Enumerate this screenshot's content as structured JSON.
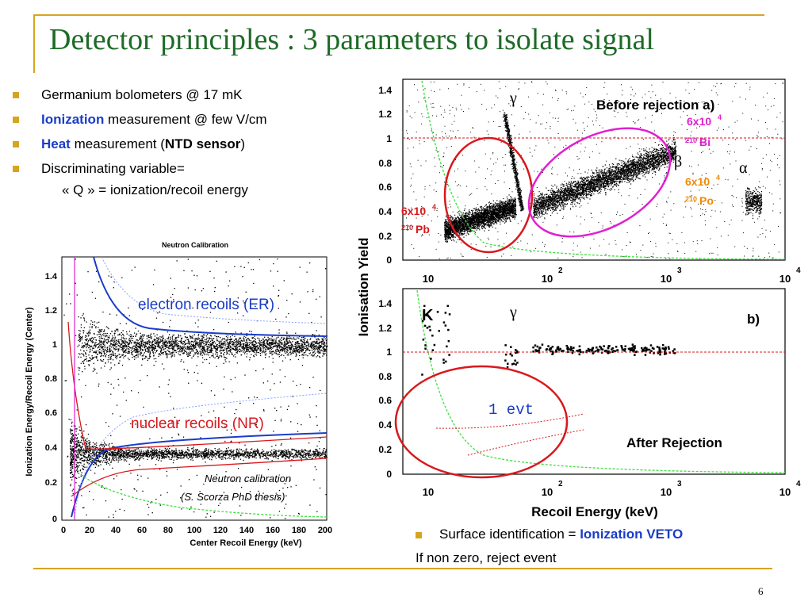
{
  "title": "Detector principles  : 3 parameters to isolate signal",
  "bullets": {
    "b1": "Germanium bolometers @ 17 mK",
    "b2_strong": "Ionization",
    "b2_rest": " measurement @ few V/cm",
    "b3_strong": "Heat",
    "b3_mid": " measurement (",
    "b3_bold": "NTD sensor",
    "b3_end": ")",
    "b4": "Discriminating variable=",
    "sub": "« Q » = ionization/recoil energy"
  },
  "left_plot": {
    "title": "Neutron Calibration",
    "ylabel": "Ionization Energy/Recoil Energy (Center)",
    "xlabel": "Center Recoil Energy (keV)",
    "yticks": [
      "1.4",
      "1.2",
      "1",
      "0.8",
      "0.6",
      "0.4",
      "0.2",
      "0"
    ],
    "xticks": [
      "0",
      "20",
      "40",
      "60",
      "80",
      "100",
      "120",
      "140",
      "160",
      "180",
      "200"
    ],
    "er_label": "electron recoils (ER)",
    "nr_label": "nuclear recoils (NR)",
    "caption1": "Neutron calibration",
    "caption2": "(S. Scorza PhD thesis)"
  },
  "right_plot": {
    "ylabel": "Ionisation Yield",
    "xlabel": "Recoil Energy (keV)",
    "yticks": [
      "1.4",
      "1.2",
      "1",
      "0.8",
      "0.6",
      "0.4",
      "0.2",
      "0"
    ],
    "xticks": [
      "10",
      "10",
      "10",
      "10"
    ],
    "xexps": [
      "",
      "2",
      "3",
      "4"
    ],
    "top_title": "Before rejection a)",
    "gamma": "γ",
    "beta": "β",
    "alpha": "α",
    "bi_count": "6x10",
    "bi_exp": "4",
    "bi_iso": "210",
    "bi_el": "Bi",
    "po_count": "6x10",
    "po_exp": "4",
    "po_iso": "210",
    "po_el": "Po",
    "pb_count": "6x10",
    "pb_exp": "4",
    "pb_iso": "210",
    "pb_el": "Pb",
    "bottom_k": "K",
    "bottom_b": "b)",
    "evt": "1 evt",
    "after": "After Rejection"
  },
  "notes": {
    "surface_prefix": "Surface identification = ",
    "surface_strong": "Ionization VETO",
    "reject": "If non zero, reject event"
  },
  "page_number": "6",
  "colors": {
    "title": "#1e6b27",
    "accent": "#d6a520",
    "emph": "#1a3cc8",
    "bi": "#e020d0",
    "po": "#f08a00",
    "pb": "#d8181c"
  }
}
